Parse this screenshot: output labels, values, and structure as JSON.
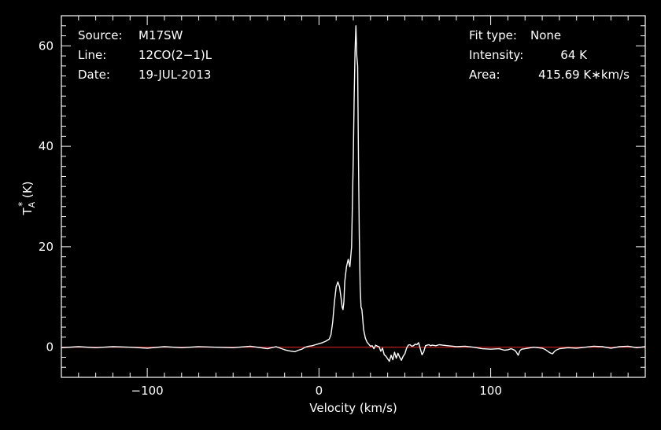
{
  "info_left": [
    {
      "label": "Source:",
      "value": "M17SW"
    },
    {
      "label": "Line:",
      "value": "12CO(2−1)L"
    },
    {
      "label": "Date:",
      "value": "19-JUL-2013"
    }
  ],
  "info_right": [
    {
      "label": "Fit type:",
      "value": "None"
    },
    {
      "label": "Intensity:",
      "value": "64 K"
    },
    {
      "label": "Area:",
      "value": "415.69 K∗km/s"
    }
  ],
  "colors": {
    "background": "#000000",
    "axes": "#ffffff",
    "spectrum": "#ffffff",
    "baseline": "#d02020"
  },
  "chart_data": {
    "type": "line",
    "xlabel": "Velocity (km/s)",
    "ylabel": "T*A (K)",
    "ylabel_main": "T",
    "ylabel_sub": "A",
    "ylabel_sup": "*",
    "ylabel_unit": " (K)",
    "xlim": [
      -150,
      190
    ],
    "ylim": [
      -6,
      66
    ],
    "x_major_ticks": [
      -100,
      0,
      100
    ],
    "x_tick_labels": [
      "−100",
      "0",
      "100"
    ],
    "x_minor_step": 10,
    "y_major_ticks": [
      0,
      20,
      40,
      60
    ],
    "y_tick_labels": [
      "0",
      "20",
      "40",
      "60"
    ],
    "y_minor_step": 2,
    "grid": false,
    "legend": "none",
    "baseline_y": 0,
    "series": [
      {
        "x": [
          -150,
          -140,
          -130,
          -120,
          -110,
          -100,
          -90,
          -80,
          -70,
          -60,
          -50,
          -40,
          -30,
          -25,
          -20,
          -18,
          -16,
          -14,
          -12,
          -10,
          -8,
          -6,
          -4,
          -2,
          0,
          2,
          4,
          6,
          7,
          8,
          9,
          10,
          11,
          12,
          13,
          13.5,
          14,
          14.5,
          15,
          16,
          17,
          18,
          19,
          20,
          20.5,
          21,
          21.5,
          22,
          22.5,
          23,
          23.5,
          24,
          24.5,
          25,
          26,
          27,
          28,
          29,
          30,
          31,
          32,
          33,
          34,
          35,
          36,
          37,
          38,
          39,
          40,
          41,
          42,
          43,
          44,
          45,
          46,
          47,
          48,
          49,
          50,
          51,
          52,
          53,
          54,
          55,
          56,
          57,
          58,
          59,
          60,
          61,
          62,
          63,
          64,
          65,
          66,
          68,
          70,
          72,
          75,
          78,
          80,
          85,
          90,
          95,
          100,
          105,
          108,
          110,
          112,
          114,
          115,
          116,
          117,
          118,
          120,
          125,
          130,
          132,
          134,
          135,
          136,
          137,
          138,
          140,
          145,
          150,
          155,
          160,
          165,
          170,
          175,
          180,
          185,
          190
        ],
        "y": [
          -0.1,
          0.1,
          -0.1,
          0.1,
          0,
          -0.2,
          0.1,
          -0.1,
          0.1,
          0,
          -0.1,
          0.2,
          -0.3,
          0.1,
          -0.5,
          -0.7,
          -0.8,
          -0.9,
          -0.6,
          -0.4,
          0,
          0.2,
          0.3,
          0.5,
          0.7,
          0.9,
          1.2,
          1.6,
          2.5,
          5.0,
          9.0,
          12.0,
          13.0,
          12.0,
          9.5,
          8.0,
          7.5,
          9.0,
          13.0,
          16.0,
          17.5,
          16.0,
          20.0,
          38.0,
          50.0,
          59.0,
          64.0,
          58.0,
          56.0,
          38.0,
          22.0,
          12.0,
          8.0,
          7.5,
          3.5,
          1.8,
          1.0,
          0.6,
          0.2,
          0.3,
          -0.3,
          0.4,
          0.2,
          0.1,
          -0.8,
          -0.2,
          -1.5,
          -1.8,
          -2.3,
          -2.8,
          -1.6,
          -2.5,
          -1.0,
          -2.2,
          -1.2,
          -2.0,
          -2.6,
          -1.8,
          -1.3,
          -0.2,
          0.4,
          0.5,
          0.2,
          0.3,
          0.6,
          0.5,
          0.9,
          -0.3,
          -1.5,
          -0.9,
          0.3,
          0.4,
          0.5,
          0.3,
          0.4,
          0.3,
          0.5,
          0.4,
          0.3,
          0.2,
          0.1,
          0.2,
          0.0,
          -0.3,
          -0.4,
          -0.3,
          -0.6,
          -0.5,
          -0.3,
          -0.6,
          -1.0,
          -1.6,
          -0.7,
          -0.4,
          -0.3,
          0.0,
          -0.2,
          -0.5,
          -1.0,
          -1.2,
          -1.3,
          -0.9,
          -0.6,
          -0.3,
          -0.1,
          -0.2,
          0.0,
          0.2,
          0.1,
          -0.2,
          0.1,
          0.2,
          -0.1,
          0.1
        ]
      }
    ]
  }
}
